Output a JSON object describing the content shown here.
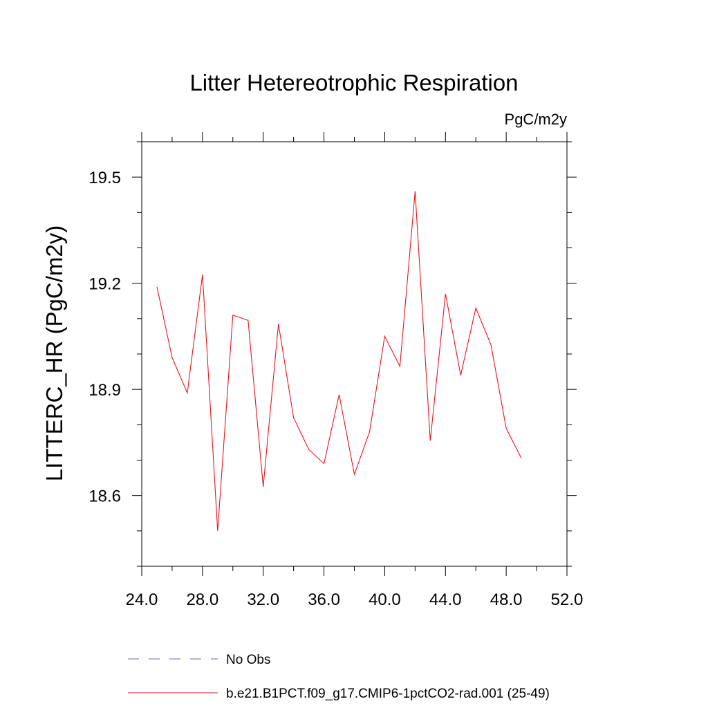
{
  "chart_data": {
    "type": "line",
    "title": "Litter Hetereotrophic Respiration",
    "units": "PgC/m2y",
    "ylabel": "LITTERC_HR  (PgC/m2y)",
    "xlim": [
      24,
      52
    ],
    "ylim": [
      18.4,
      19.6
    ],
    "xticks": [
      "24.0",
      "28.0",
      "32.0",
      "36.0",
      "40.0",
      "44.0",
      "48.0",
      "52.0"
    ],
    "xtick_values": [
      24,
      28,
      32,
      36,
      40,
      44,
      48,
      52
    ],
    "yticks": [
      "18.6",
      "18.9",
      "19.2",
      "19.5"
    ],
    "ytick_values": [
      18.6,
      18.9,
      19.2,
      19.5
    ],
    "grid": false,
    "legend_position": "bottom",
    "series": [
      {
        "name": "b.e21.B1PCT.f09_g17.CMIP6-1pctCO2-rad.001 (25-49)",
        "color": "#e8141c",
        "x": [
          25,
          26,
          27,
          28,
          29,
          30,
          31,
          32,
          33,
          34,
          35,
          36,
          37,
          38,
          39,
          40,
          41,
          42,
          43,
          44,
          45,
          46,
          47,
          48,
          49
        ],
        "values": [
          19.19,
          18.99,
          18.89,
          19.225,
          18.5,
          19.11,
          19.095,
          18.625,
          19.085,
          18.82,
          18.73,
          18.69,
          18.885,
          18.66,
          18.78,
          19.05,
          18.965,
          19.46,
          18.755,
          19.17,
          18.94,
          19.13,
          19.025,
          18.79,
          18.705
        ]
      }
    ],
    "legend": [
      {
        "label": "No Obs",
        "color": "#6a6ab4",
        "style": "dashed"
      },
      {
        "label": "b.e21.B1PCT.f09_g17.CMIP6-1pctCO2-rad.001 (25-49)",
        "color": "#e8141c",
        "style": "solid"
      }
    ]
  }
}
